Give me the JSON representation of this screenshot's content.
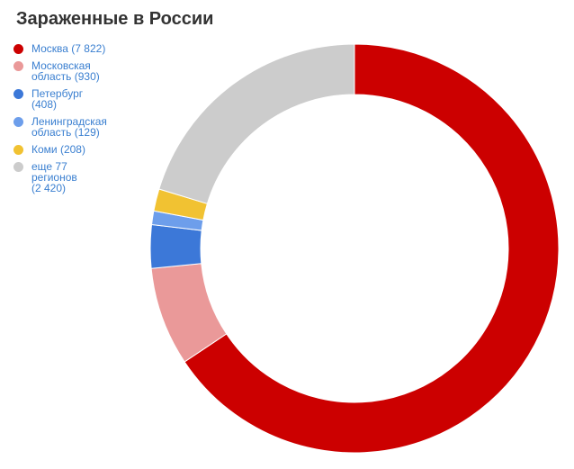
{
  "chart_data": {
    "type": "pie",
    "style": "donut",
    "title": "Зараженные в России",
    "legend_position": "left",
    "slices": [
      {
        "label": "Москва (7 822)",
        "value": 7822,
        "color": "#cc0000"
      },
      {
        "label": "Московская\nобласть (930)",
        "value": 930,
        "color": "#ea9999"
      },
      {
        "label": "Петербург\n(408)",
        "value": 408,
        "color": "#3c78d8"
      },
      {
        "label": "Ленинградская\nобласть (129)",
        "value": 129,
        "color": "#6d9eeb"
      },
      {
        "label": "Коми (208)",
        "value": 208,
        "color": "#f1c232"
      },
      {
        "label": "еще 77\nрегионов\n(2 420)",
        "value": 2420,
        "color": "#cccccc"
      }
    ]
  }
}
